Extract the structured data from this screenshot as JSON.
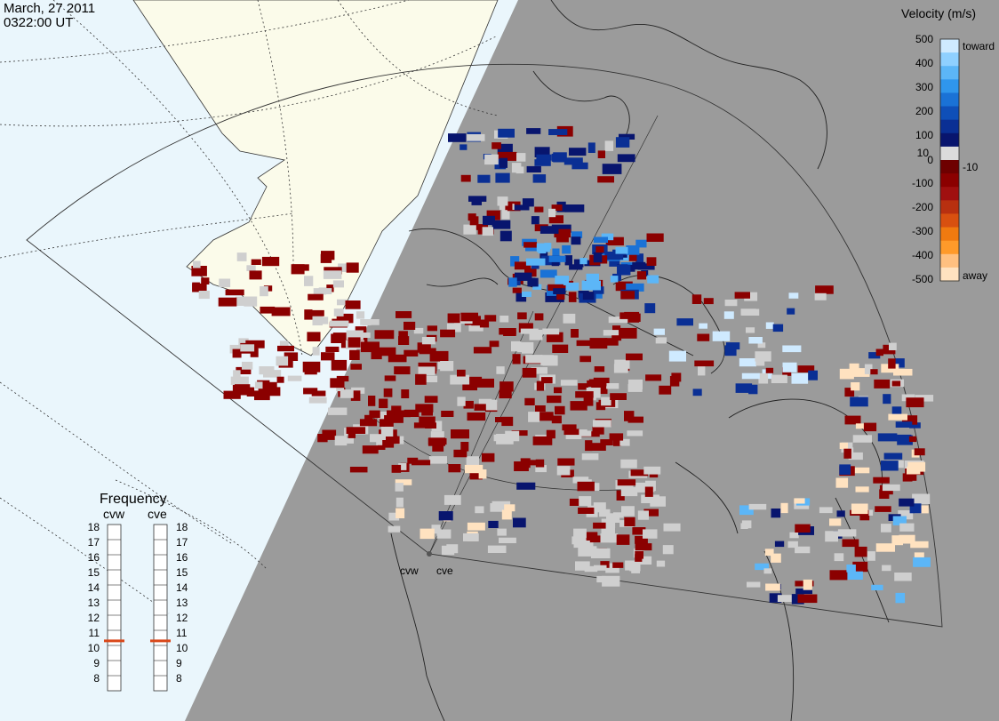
{
  "header": {
    "date": "March, 27 2011",
    "time": "0322:00 UT"
  },
  "legend": {
    "title": "Velocity (m/s)",
    "ticks": [
      "500",
      "400",
      "300",
      "200",
      "100",
      "10",
      "0",
      "-10",
      "-100",
      "-200",
      "-300",
      "-400",
      "-500"
    ],
    "toward_label": "toward",
    "away_label": "away",
    "scale_colors": [
      "#cfeaff",
      "#8fd0ff",
      "#5cb6f7",
      "#2f96ec",
      "#1a72d6",
      "#0f4fb8",
      "#0a2f94",
      "#08156e",
      "#dcdcdc",
      "#6e0000",
      "#8b0000",
      "#a01010",
      "#b83010",
      "#d85010",
      "#f07a10",
      "#ff9a2a",
      "#ffc080",
      "#ffe2c0"
    ]
  },
  "frequency": {
    "title": "Frequency",
    "radars": [
      "cvw",
      "cve"
    ],
    "ticks": [
      "18",
      "17",
      "16",
      "15",
      "14",
      "13",
      "12",
      "11",
      "10",
      "9",
      "8"
    ],
    "current": {
      "cvw": 10.8,
      "cve": 10.8
    }
  },
  "sites": [
    "cvw",
    "cve"
  ],
  "map": {
    "land_color": "#fbfbea",
    "ocean_color": "#eaf6fc",
    "night_color": "#9b9b9b"
  }
}
